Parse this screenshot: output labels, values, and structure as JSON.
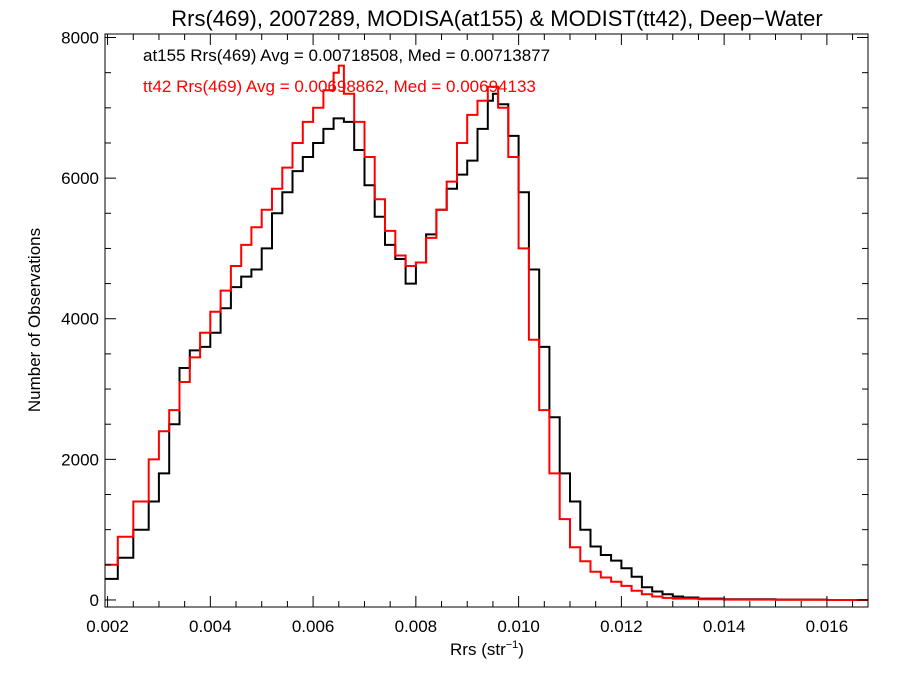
{
  "chart_data": {
    "type": "line",
    "title": "Rrs(469), 2007289, MODISA(at155) & MODIST(tt42), Deep−Water",
    "xlabel": "Rrs (str",
    "xlabel_sup": "−1",
    "xlabel_close": ")",
    "ylabel": "Number of Observations",
    "xlim": [
      0.00195,
      0.0168
    ],
    "ylim": [
      -100,
      8050
    ],
    "xticks": [
      0.002,
      0.004,
      0.006,
      0.008,
      0.01,
      0.012,
      0.014,
      0.016
    ],
    "xtick_labels": [
      "0.002",
      "0.004",
      "0.006",
      "0.008",
      "0.010",
      "0.012",
      "0.014",
      "0.016"
    ],
    "yticks": [
      0,
      2000,
      4000,
      6000,
      8000
    ],
    "ytick_labels": [
      "0",
      "2000",
      "4000",
      "6000",
      "8000"
    ],
    "grid": false,
    "annotations": [
      {
        "text": "at155 Rrs(469) Avg = 0.00718508, Med = 0.00713877",
        "color": "#000000"
      },
      {
        "text": "tt42 Rrs(469) Avg = 0.00698862, Med = 0.00694133",
        "color": "#ff0000"
      }
    ],
    "series": [
      {
        "color": "#000000",
        "x": [
          0.00195,
          0.0022,
          0.0025,
          0.0028,
          0.003,
          0.0032,
          0.0034,
          0.0036,
          0.0038,
          0.004,
          0.0042,
          0.0044,
          0.0046,
          0.0048,
          0.005,
          0.0052,
          0.0054,
          0.0056,
          0.0058,
          0.006,
          0.0062,
          0.0064,
          0.0066,
          0.0068,
          0.007,
          0.0072,
          0.0074,
          0.0076,
          0.0078,
          0.008,
          0.0082,
          0.0084,
          0.0086,
          0.0088,
          0.009,
          0.0092,
          0.0094,
          0.0095,
          0.0096,
          0.0098,
          0.01,
          0.0102,
          0.0104,
          0.0106,
          0.0108,
          0.011,
          0.0112,
          0.0114,
          0.0116,
          0.0118,
          0.012,
          0.0122,
          0.0124,
          0.0126,
          0.0128,
          0.013,
          0.0132,
          0.0135,
          0.014,
          0.015,
          0.016,
          0.0168
        ],
        "y": [
          300,
          600,
          1000,
          1400,
          1800,
          2500,
          3300,
          3550,
          3600,
          3800,
          4150,
          4450,
          4600,
          4700,
          5000,
          5500,
          5800,
          6100,
          6300,
          6500,
          6700,
          6850,
          6800,
          6400,
          5900,
          5450,
          5050,
          4850,
          4500,
          4800,
          5200,
          5550,
          5850,
          6050,
          6250,
          6700,
          7100,
          7200,
          7050,
          6600,
          5800,
          4700,
          3600,
          2600,
          1800,
          1400,
          1000,
          760,
          640,
          560,
          450,
          330,
          180,
          120,
          80,
          50,
          35,
          20,
          10,
          5,
          0,
          0
        ]
      },
      {
        "color": "#ff0000",
        "x": [
          0.00195,
          0.0022,
          0.0025,
          0.0028,
          0.003,
          0.0032,
          0.0034,
          0.0036,
          0.0038,
          0.004,
          0.0042,
          0.0044,
          0.0046,
          0.0048,
          0.005,
          0.0052,
          0.0054,
          0.0056,
          0.0058,
          0.006,
          0.0062,
          0.0064,
          0.0065,
          0.0066,
          0.0068,
          0.007,
          0.0072,
          0.0074,
          0.0076,
          0.0078,
          0.008,
          0.0082,
          0.0084,
          0.0086,
          0.0088,
          0.009,
          0.0092,
          0.0094,
          0.0096,
          0.0098,
          0.01,
          0.0102,
          0.0104,
          0.0106,
          0.0108,
          0.011,
          0.0112,
          0.0114,
          0.0116,
          0.0118,
          0.012,
          0.0122,
          0.0124,
          0.0126,
          0.0128,
          0.013,
          0.0135,
          0.014,
          0.015,
          0.016,
          0.0168
        ],
        "y": [
          500,
          900,
          1400,
          2000,
          2400,
          2700,
          3100,
          3450,
          3800,
          4100,
          4400,
          4750,
          5050,
          5300,
          5550,
          5850,
          6150,
          6500,
          6800,
          7000,
          7250,
          7500,
          7600,
          7200,
          6800,
          6300,
          5700,
          5250,
          4900,
          4750,
          4800,
          5150,
          5550,
          5950,
          6500,
          6900,
          7100,
          7300,
          7000,
          6300,
          5000,
          3700,
          2700,
          1800,
          1150,
          750,
          550,
          400,
          320,
          260,
          200,
          130,
          80,
          50,
          30,
          20,
          10,
          5,
          2,
          0,
          0
        ]
      }
    ]
  }
}
